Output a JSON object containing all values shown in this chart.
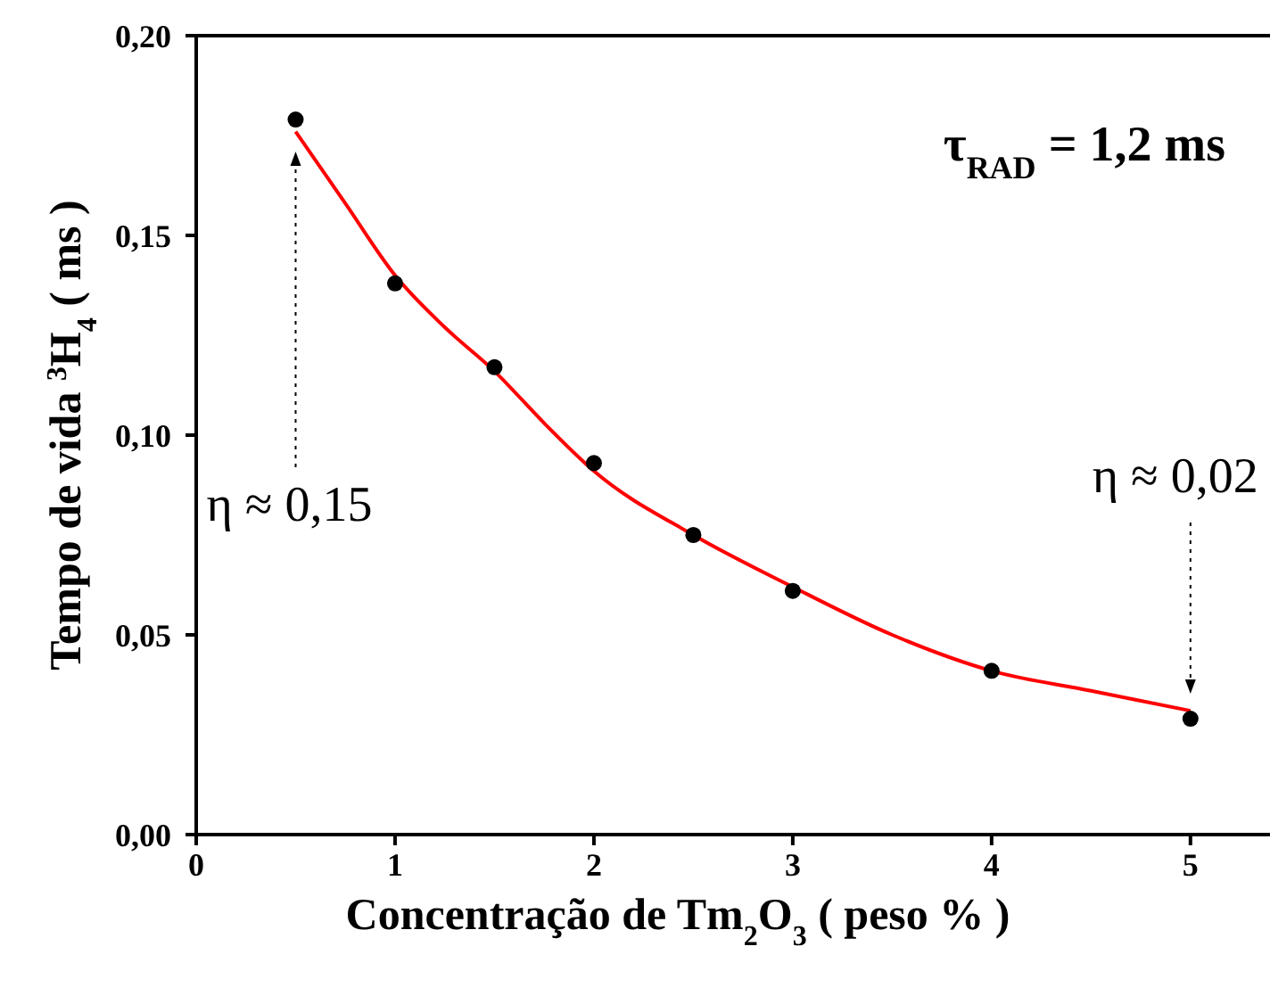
{
  "chart_data": {
    "type": "scatter",
    "xlabel": "Concentração de Tm$_{2}$O$_{3}$ ( peso % )",
    "ylabel": "Tempo de vida $^{3}$H$_{4}$ ( ms )",
    "annotations": [
      "τ$_{RAD}$ = 1,2 ms",
      "η ≈ 0,15",
      "η ≈ 0,02"
    ],
    "xlim": [
      0,
      5.4
    ],
    "ylim": [
      0,
      0.2
    ],
    "xticks": [
      0,
      1,
      2,
      3,
      4,
      5
    ],
    "yticks": [
      {
        "value": 0,
        "label": "0,00"
      },
      {
        "value": 0.05,
        "label": "0,05"
      },
      {
        "value": 0.1,
        "label": "0,10"
      },
      {
        "value": 0.15,
        "label": "0,15"
      },
      {
        "value": 0.2,
        "label": "0,20"
      }
    ],
    "series": [
      {
        "marker": "circle",
        "color": "#000000",
        "x": [
          0.5,
          1,
          1.5,
          2,
          2.5,
          3,
          4,
          5
        ],
        "values": [
          0.179,
          0.138,
          0.117,
          0.093,
          0.075,
          0.061,
          0.041,
          0.029
        ]
      },
      {
        "type": "line",
        "marker": "none",
        "color": "#ff0000",
        "x": [
          0.5,
          0.75,
          1,
          1.25,
          1.5,
          1.75,
          2,
          2.5,
          3,
          3.5,
          4,
          4.5,
          5
        ],
        "values": [
          0.176,
          0.158,
          0.14,
          0.127,
          0.116,
          0.103,
          0.091,
          0.075,
          0.062,
          0.05,
          0.041,
          0.036,
          0.031
        ]
      }
    ]
  }
}
